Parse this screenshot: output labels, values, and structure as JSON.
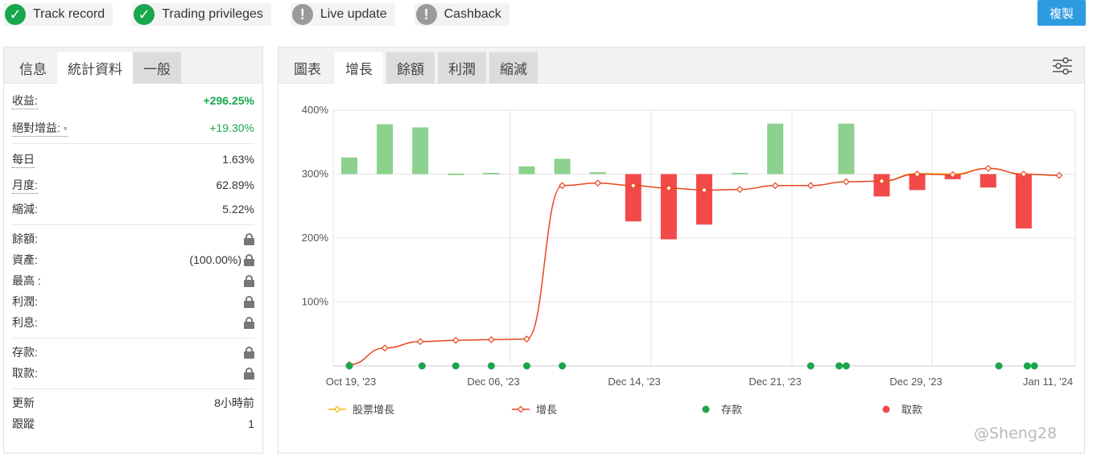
{
  "badges": [
    {
      "label": "Track record",
      "status": "ok"
    },
    {
      "label": "Trading privileges",
      "status": "ok"
    },
    {
      "label": "Live update",
      "status": "warn"
    },
    {
      "label": "Cashback",
      "status": "warn"
    }
  ],
  "copy_label": "複製",
  "left_tabs": [
    "信息",
    "統計資料",
    "一般"
  ],
  "stats": {
    "gain_label": "收益:",
    "gain_value": "+296.25%",
    "abs_gain_label": "絕對增益: ◦",
    "abs_gain_value": "+19.30%",
    "daily_label": "每日",
    "daily_value": "1.63%",
    "monthly_label": "月度:",
    "monthly_value": "62.89%",
    "drawdown_label": "縮減:",
    "drawdown_value": "5.22%",
    "balance_label": "餘額:",
    "equity_label": "資產:",
    "equity_value": "(100.00%)",
    "highest_label": "最高 :",
    "profit_label": "利潤:",
    "interest_label": "利息:",
    "deposits_label": "存款:",
    "withdrawals_label": "取款:",
    "updated_label": "更新",
    "updated_value": "8小時前",
    "tracking_label": "跟蹤",
    "tracking_value": "1"
  },
  "right_tabs": [
    "圖表",
    "增長",
    "餘額",
    "利潤",
    "縮減"
  ],
  "watermark": "@Sheng28",
  "chart_data": {
    "type": "bar+line",
    "y_ticks": [
      "100%",
      "200%",
      "300%",
      "400%"
    ],
    "ylim": [
      0,
      400
    ],
    "x_tick_labels": [
      "Oct 19, '23",
      "Dec 06, '23",
      "Dec 14, '23",
      "Dec 21, '23",
      "Dec 29, '23",
      "Jan 11, '24"
    ],
    "monthly_bars": [
      {
        "i": 0,
        "v": 326
      },
      {
        "i": 1,
        "v": 378
      },
      {
        "i": 2,
        "v": 373
      },
      {
        "i": 3,
        "v": 301
      },
      {
        "i": 4,
        "v": 302
      },
      {
        "i": 5,
        "v": 312
      },
      {
        "i": 6,
        "v": 324
      },
      {
        "i": 7,
        "v": 303
      },
      {
        "i": 8,
        "v": 226
      },
      {
        "i": 9,
        "v": 198
      },
      {
        "i": 10,
        "v": 221
      },
      {
        "i": 11,
        "v": 302
      },
      {
        "i": 12,
        "v": 379
      },
      {
        "i": 14,
        "v": 379
      },
      {
        "i": 15,
        "v": 265
      },
      {
        "i": 16,
        "v": 275
      },
      {
        "i": 17,
        "v": 292
      },
      {
        "i": 18,
        "v": 279
      },
      {
        "i": 19,
        "v": 215
      }
    ],
    "growth_line": [
      {
        "i": 0,
        "v": 2
      },
      {
        "i": 1,
        "v": 28
      },
      {
        "i": 2,
        "v": 38
      },
      {
        "i": 3,
        "v": 40
      },
      {
        "i": 4,
        "v": 41
      },
      {
        "i": 5,
        "v": 42
      },
      {
        "i": 6,
        "v": 282
      },
      {
        "i": 7,
        "v": 286
      },
      {
        "i": 8,
        "v": 282
      },
      {
        "i": 9,
        "v": 278
      },
      {
        "i": 10,
        "v": 275
      },
      {
        "i": 11,
        "v": 276
      },
      {
        "i": 12,
        "v": 282
      },
      {
        "i": 13,
        "v": 282
      },
      {
        "i": 14,
        "v": 288
      },
      {
        "i": 15,
        "v": 289
      },
      {
        "i": 16,
        "v": 300
      },
      {
        "i": 17,
        "v": 299
      },
      {
        "i": 18,
        "v": 309
      },
      {
        "i": 19,
        "v": 300
      },
      {
        "i": 20,
        "v": 298
      }
    ],
    "equity_line": [
      {
        "i": 15,
        "v": 289
      },
      {
        "i": 16,
        "v": 301
      },
      {
        "i": 17,
        "v": 300
      },
      {
        "i": 18,
        "v": 309
      },
      {
        "i": 19,
        "v": 300
      },
      {
        "i": 20,
        "v": 298
      }
    ],
    "deposit_points": [
      0,
      2.05,
      3,
      4,
      5,
      6,
      13,
      13.8,
      14,
      18.3,
      19.1,
      19.3
    ],
    "legend": [
      {
        "label": "股票增長",
        "color": "#f5b800",
        "kind": "line"
      },
      {
        "label": "增長",
        "color": "#e8461e",
        "kind": "line"
      },
      {
        "label": "存款",
        "color": "#1aa64b",
        "kind": "dot"
      },
      {
        "label": "取款",
        "color": "#f04a4a",
        "kind": "dot"
      }
    ]
  }
}
